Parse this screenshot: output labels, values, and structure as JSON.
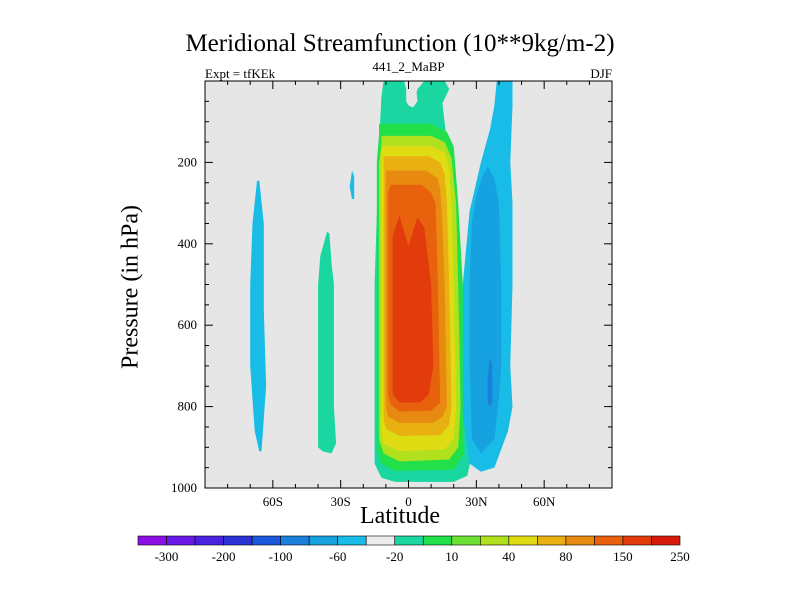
{
  "title": "Meridional Streamfunction (10**9kg/m-2)",
  "left_string": "Expt = tfKEk",
  "center_string": "441_2_MaBP",
  "right_string": "DJF",
  "chart_data": {
    "type": "heatmap",
    "xlabel": "Latitude",
    "ylabel": "Pressure (in hPa)",
    "xlim": [
      -90,
      90
    ],
    "ylim": [
      1000,
      0
    ],
    "y_reversed": true,
    "x_ticks": [
      {
        "value": -60,
        "label": "60S"
      },
      {
        "value": -30,
        "label": "30S"
      },
      {
        "value": 0,
        "label": "0"
      },
      {
        "value": 30,
        "label": "30N"
      },
      {
        "value": 60,
        "label": "60N"
      }
    ],
    "y_ticks": [
      200,
      400,
      600,
      800,
      1000
    ],
    "background_color": "#e6e6e6",
    "colorbar": {
      "colors": [
        "#8c10e6",
        "#6a18e8",
        "#4a22e0",
        "#2a32d8",
        "#1a58dc",
        "#1a80dc",
        "#16a2e0",
        "#18bce6",
        "#ececec",
        "#1ad6a0",
        "#22e04a",
        "#6ce034",
        "#b0e01e",
        "#e0dc14",
        "#e8b010",
        "#e88a10",
        "#e8620e",
        "#e23c0c",
        "#d81a0a"
      ],
      "tick_labels": [
        "-300",
        "-200",
        "-100",
        "-60",
        "-20",
        "10",
        "40",
        "80",
        "150",
        "250"
      ]
    },
    "contour_regions": [
      {
        "level": 10,
        "color": "#1ad6a0",
        "points": [
          [
            -11,
            0
          ],
          [
            -2,
            0
          ],
          [
            -1,
            20
          ],
          [
            1,
            40
          ],
          [
            3,
            40
          ],
          [
            4,
            20
          ],
          [
            7,
            0
          ],
          [
            16,
            0
          ],
          [
            18,
            20
          ],
          [
            15,
            55
          ],
          [
            17,
            150
          ],
          [
            19,
            300
          ],
          [
            24,
            500
          ],
          [
            27,
            800
          ],
          [
            28,
            920
          ],
          [
            26,
            970
          ],
          [
            20,
            985
          ],
          [
            -6,
            985
          ],
          [
            -12,
            975
          ],
          [
            -15,
            940
          ],
          [
            -15,
            500
          ],
          [
            -13,
            150
          ],
          [
            -12,
            40
          ]
        ]
      },
      {
        "level": 40,
        "color": "#22e04a",
        "points": [
          [
            -13,
            105
          ],
          [
            10,
            105
          ],
          [
            17,
            125
          ],
          [
            20,
            160
          ],
          [
            22,
            300
          ],
          [
            24,
            500
          ],
          [
            25,
            800
          ],
          [
            24,
            920
          ],
          [
            20,
            955
          ],
          [
            -6,
            958
          ],
          [
            -12,
            940
          ],
          [
            -14,
            900
          ],
          [
            -14,
            200
          ],
          [
            -13,
            130
          ]
        ]
      },
      {
        "level": 80,
        "color": "#b0e01e",
        "points": [
          [
            -12,
            135
          ],
          [
            10,
            135
          ],
          [
            16,
            150
          ],
          [
            19,
            190
          ],
          [
            21,
            300
          ],
          [
            22,
            500
          ],
          [
            23,
            800
          ],
          [
            22,
            900
          ],
          [
            18,
            930
          ],
          [
            -4,
            935
          ],
          [
            -11,
            915
          ],
          [
            -13,
            880
          ],
          [
            -13,
            200
          ],
          [
            -12,
            160
          ]
        ]
      },
      {
        "level": 80,
        "color": "#e0dc14",
        "points": [
          [
            -12,
            160
          ],
          [
            10,
            160
          ],
          [
            16,
            175
          ],
          [
            18,
            210
          ],
          [
            19,
            300
          ],
          [
            20,
            500
          ],
          [
            21,
            800
          ],
          [
            20,
            880
          ],
          [
            16,
            905
          ],
          [
            -4,
            910
          ],
          [
            -11,
            890
          ],
          [
            -12,
            860
          ],
          [
            -12,
            220
          ],
          [
            -12,
            185
          ]
        ]
      },
      {
        "level": 150,
        "color": "#e8b010",
        "points": [
          [
            -11,
            185
          ],
          [
            9,
            185
          ],
          [
            14,
            200
          ],
          [
            16,
            230
          ],
          [
            17,
            300
          ],
          [
            18,
            500
          ],
          [
            19,
            800
          ],
          [
            18,
            845
          ],
          [
            14,
            870
          ],
          [
            -4,
            872
          ],
          [
            -10,
            855
          ],
          [
            -11,
            830
          ],
          [
            -11,
            240
          ],
          [
            -11,
            210
          ]
        ]
      },
      {
        "level": 150,
        "color": "#e88a10",
        "points": [
          [
            -10,
            220
          ],
          [
            8,
            220
          ],
          [
            13,
            240
          ],
          [
            14,
            265
          ],
          [
            15,
            350
          ],
          [
            16,
            500
          ],
          [
            17,
            800
          ],
          [
            15,
            825
          ],
          [
            11,
            840
          ],
          [
            -4,
            840
          ],
          [
            -9,
            825
          ],
          [
            -10,
            800
          ],
          [
            -10,
            270
          ],
          [
            -10,
            240
          ]
        ]
      },
      {
        "level": 250,
        "color": "#e8620e",
        "points": [
          [
            -8,
            255
          ],
          [
            6,
            255
          ],
          [
            10,
            275
          ],
          [
            12,
            300
          ],
          [
            13,
            500
          ],
          [
            14,
            790
          ],
          [
            10,
            810
          ],
          [
            -4,
            812
          ],
          [
            -8,
            795
          ],
          [
            -9,
            770
          ],
          [
            -9,
            300
          ],
          [
            -9,
            275
          ]
        ]
      },
      {
        "level": 250,
        "color": "#e23c0c",
        "points": [
          [
            -4,
            330
          ],
          [
            -3,
            350
          ],
          [
            0,
            405
          ],
          [
            4,
            335
          ],
          [
            7,
            360
          ],
          [
            10,
            500
          ],
          [
            11,
            700
          ],
          [
            9,
            770
          ],
          [
            5,
            790
          ],
          [
            -4,
            790
          ],
          [
            -7,
            770
          ],
          [
            -7,
            700
          ],
          [
            -7,
            380
          ]
        ]
      },
      {
        "level": -20,
        "color": "#18bce6",
        "points": [
          [
            39,
            0
          ],
          [
            46,
            0
          ],
          [
            46,
            60
          ],
          [
            45,
            200
          ],
          [
            46,
            300
          ],
          [
            46,
            500
          ],
          [
            45,
            700
          ],
          [
            46,
            800
          ],
          [
            44,
            860
          ],
          [
            38,
            950
          ],
          [
            32,
            960
          ],
          [
            27,
            940
          ],
          [
            24,
            820
          ],
          [
            24,
            500
          ],
          [
            27,
            320
          ],
          [
            32,
            200
          ],
          [
            36,
            120
          ],
          [
            38,
            60
          ]
        ]
      },
      {
        "level": -60,
        "color": "#16a2e0",
        "points": [
          [
            35,
            210
          ],
          [
            38,
            240
          ],
          [
            40,
            300
          ],
          [
            41,
            500
          ],
          [
            41,
            700
          ],
          [
            40,
            780
          ],
          [
            38,
            880
          ],
          [
            32,
            915
          ],
          [
            28,
            880
          ],
          [
            27,
            700
          ],
          [
            27,
            500
          ],
          [
            28,
            350
          ],
          [
            30,
            280
          ],
          [
            33,
            230
          ]
        ]
      },
      {
        "level": -100,
        "color": "#1a80dc",
        "points": [
          [
            36,
            680
          ],
          [
            37,
            700
          ],
          [
            37,
            760
          ],
          [
            37,
            790
          ],
          [
            36,
            800
          ],
          [
            35,
            790
          ],
          [
            35,
            730
          ]
        ]
      },
      {
        "level": -20,
        "color": "#18bce6",
        "points": [
          [
            -67,
            245
          ],
          [
            -66,
            245
          ],
          [
            -64,
            350
          ],
          [
            -64,
            560
          ],
          [
            -63,
            750
          ],
          [
            -65,
            910
          ],
          [
            -66,
            910
          ],
          [
            -68,
            860
          ],
          [
            -70,
            700
          ],
          [
            -70,
            500
          ],
          [
            -69,
            350
          ]
        ]
      },
      {
        "level": -20,
        "color": "#18bce6",
        "points": [
          [
            -25,
            220
          ],
          [
            -24,
            235
          ],
          [
            -24,
            290
          ],
          [
            -25,
            290
          ],
          [
            -26,
            260
          ]
        ]
      },
      {
        "level": 10,
        "color": "#1ad6a0",
        "points": [
          [
            -36,
            370
          ],
          [
            -35,
            375
          ],
          [
            -34,
            450
          ],
          [
            -33,
            500
          ],
          [
            -33,
            700
          ],
          [
            -33,
            800
          ],
          [
            -32,
            890
          ],
          [
            -34,
            915
          ],
          [
            -38,
            910
          ],
          [
            -40,
            900
          ],
          [
            -40,
            700
          ],
          [
            -40,
            500
          ],
          [
            -39,
            430
          ]
        ]
      },
      {
        "level": 0,
        "color": "#e6e6e6",
        "points": [
          [
            -1,
            0
          ],
          [
            3,
            0
          ],
          [
            4,
            50
          ],
          [
            2,
            65
          ],
          [
            0,
            60
          ],
          [
            -1,
            50
          ]
        ]
      }
    ]
  }
}
